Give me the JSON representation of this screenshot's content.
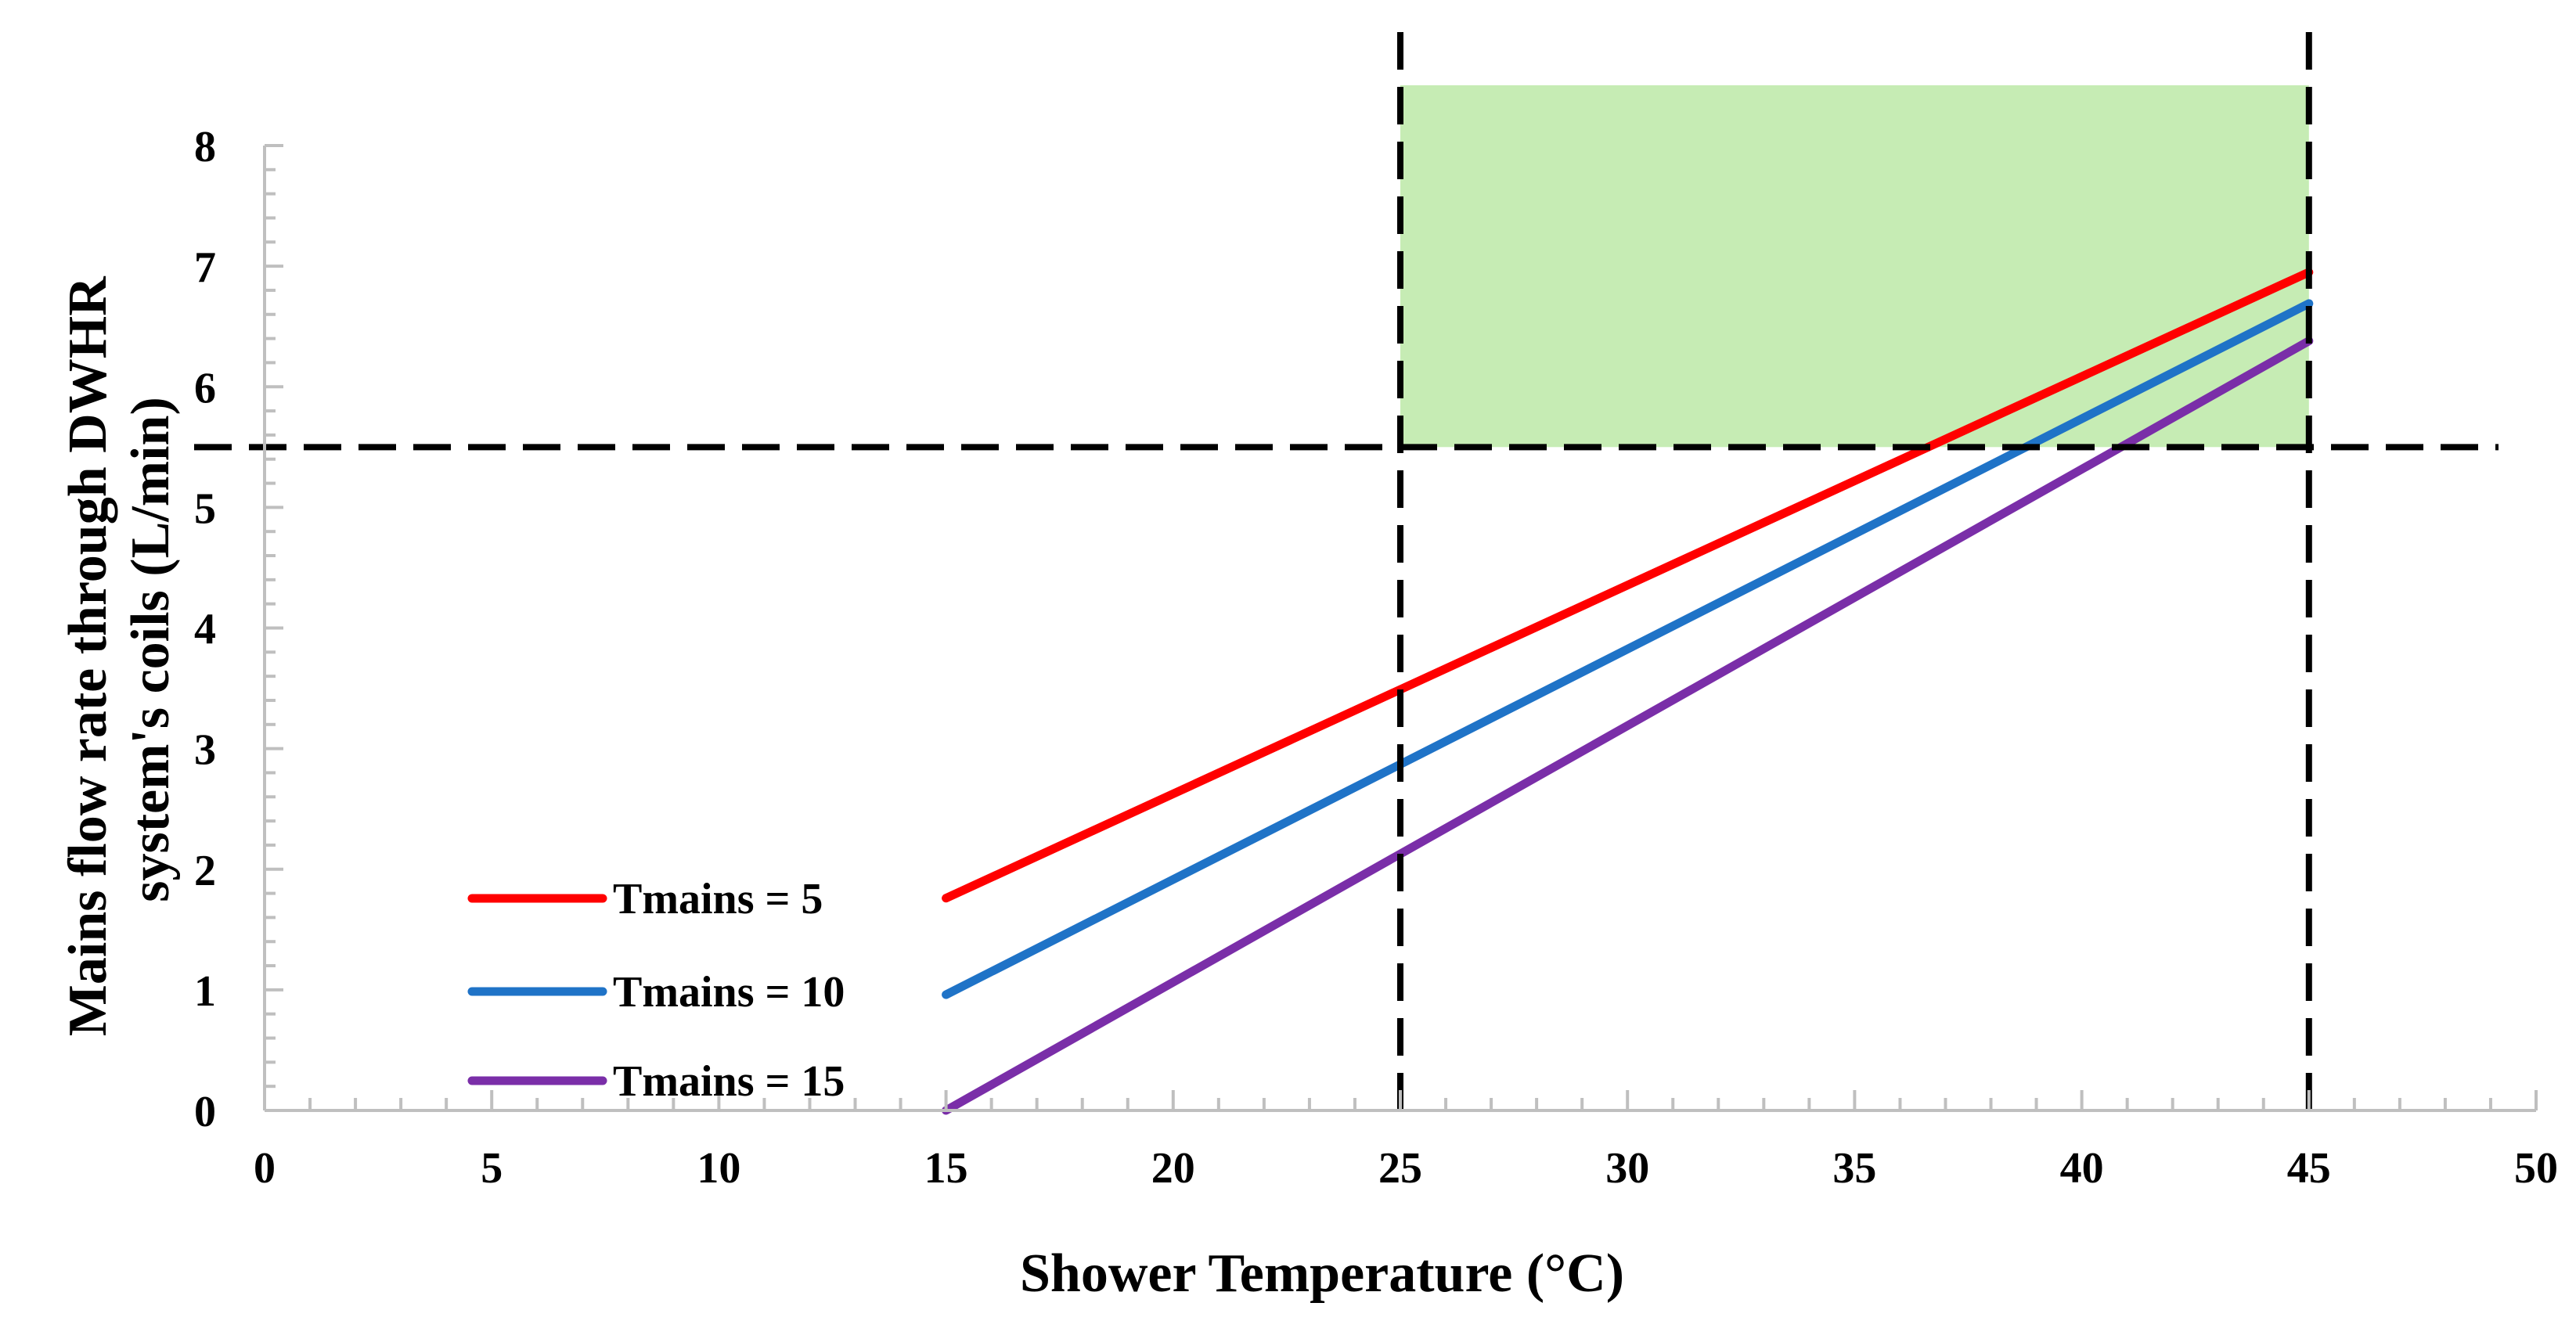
{
  "chart_data": {
    "type": "line",
    "xlabel": "Shower Temperature (°C)",
    "ylabel_lines": [
      "Mains flow rate through DWHR",
      "system's coils (L/min)"
    ],
    "xlim": [
      0,
      50
    ],
    "ylim": [
      0,
      8
    ],
    "x_ticks": [
      "0",
      "5",
      "10",
      "15",
      "20",
      "25",
      "30",
      "35",
      "40",
      "45",
      "50"
    ],
    "y_ticks": [
      "0",
      "1",
      "2",
      "3",
      "4",
      "5",
      "6",
      "7",
      "8"
    ],
    "series": [
      {
        "name": "Tmains = 5",
        "color": "#ff0000",
        "x": [
          15,
          45
        ],
        "y": [
          1.76,
          6.95
        ]
      },
      {
        "name": "Tmains = 10",
        "color": "#1f73c7",
        "x": [
          15,
          45
        ],
        "y": [
          0.96,
          6.69
        ]
      },
      {
        "name": "Tmains = 15",
        "color": "#7a2ea8",
        "x": [
          15,
          45
        ],
        "y": [
          0.0,
          6.38
        ]
      }
    ],
    "reference_lines": {
      "vertical_x": [
        25,
        45
      ],
      "horizontal_y": 5.5,
      "style": "dashed",
      "color": "#000000"
    },
    "shaded_region": {
      "x": [
        25,
        45
      ],
      "y": [
        5.5,
        8.5
      ],
      "color": "#c6ecb4"
    },
    "legend_position": "bottom-left"
  }
}
